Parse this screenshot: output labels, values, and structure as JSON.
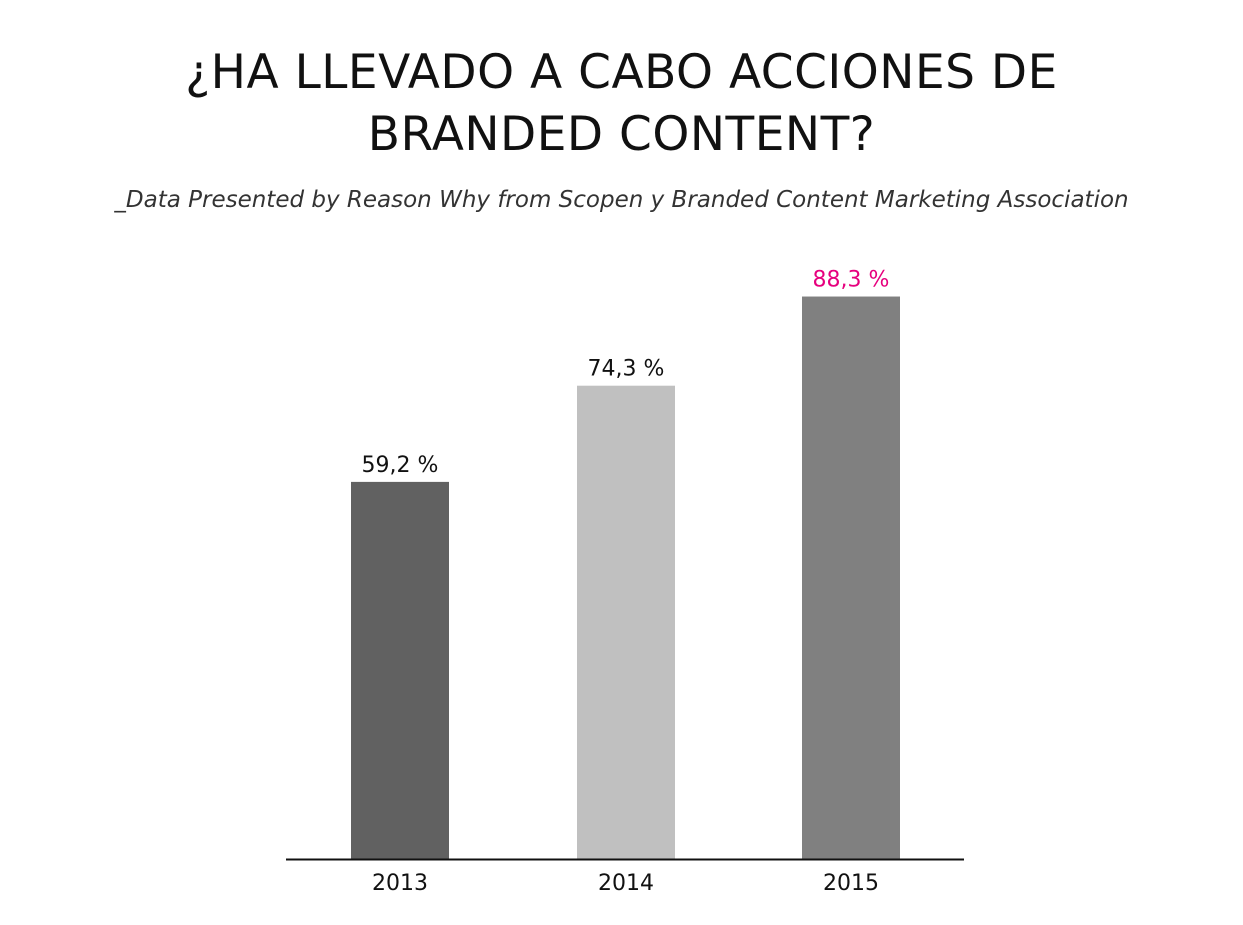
{
  "header": {
    "title_line1": "¿HA LLEVADO A CABO ACCIONES DE",
    "title_line2": "BRANDED CONTENT?",
    "subtitle": "_Data Presented by Reason Why from Scopen y Branded Content Marketing Association"
  },
  "chart_data": {
    "type": "bar",
    "categories": [
      "2013",
      "2014",
      "2015"
    ],
    "values": [
      59.2,
      74.3,
      88.3
    ],
    "value_labels": [
      "59,2 %",
      "74,3 %",
      "88,3 %"
    ],
    "bar_colors": [
      "#616161",
      "#c0c0c0",
      "#808080"
    ],
    "value_label_colors": [
      "#111111",
      "#111111",
      "#e6007e"
    ],
    "axis_color": "#111111",
    "ylim": [
      0,
      100
    ],
    "grid": false,
    "legend": "none",
    "xlabel": "",
    "ylabel": ""
  }
}
